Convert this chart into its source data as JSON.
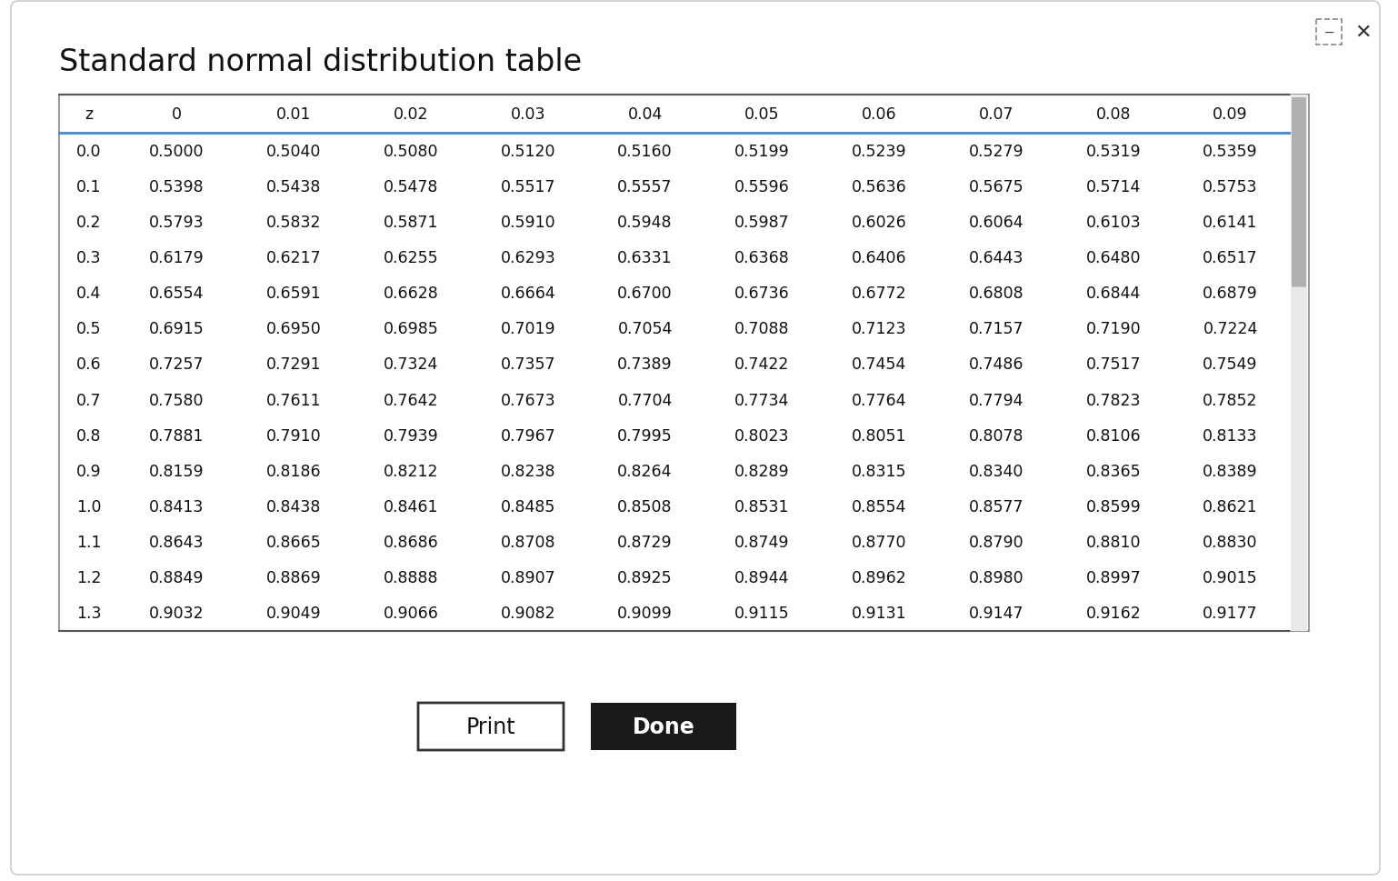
{
  "title": "Standard normal distribution table",
  "col_headers": [
    "z",
    "0",
    "0.01",
    "0.02",
    "0.03",
    "0.04",
    "0.05",
    "0.06",
    "0.07",
    "0.08",
    "0.09"
  ],
  "rows": [
    [
      "0.0",
      "0.5000",
      "0.5040",
      "0.5080",
      "0.5120",
      "0.5160",
      "0.5199",
      "0.5239",
      "0.5279",
      "0.5319",
      "0.5359"
    ],
    [
      "0.1",
      "0.5398",
      "0.5438",
      "0.5478",
      "0.5517",
      "0.5557",
      "0.5596",
      "0.5636",
      "0.5675",
      "0.5714",
      "0.5753"
    ],
    [
      "0.2",
      "0.5793",
      "0.5832",
      "0.5871",
      "0.5910",
      "0.5948",
      "0.5987",
      "0.6026",
      "0.6064",
      "0.6103",
      "0.6141"
    ],
    [
      "0.3",
      "0.6179",
      "0.6217",
      "0.6255",
      "0.6293",
      "0.6331",
      "0.6368",
      "0.6406",
      "0.6443",
      "0.6480",
      "0.6517"
    ],
    [
      "0.4",
      "0.6554",
      "0.6591",
      "0.6628",
      "0.6664",
      "0.6700",
      "0.6736",
      "0.6772",
      "0.6808",
      "0.6844",
      "0.6879"
    ],
    [
      "0.5",
      "0.6915",
      "0.6950",
      "0.6985",
      "0.7019",
      "0.7054",
      "0.7088",
      "0.7123",
      "0.7157",
      "0.7190",
      "0.7224"
    ],
    [
      "0.6",
      "0.7257",
      "0.7291",
      "0.7324",
      "0.7357",
      "0.7389",
      "0.7422",
      "0.7454",
      "0.7486",
      "0.7517",
      "0.7549"
    ],
    [
      "0.7",
      "0.7580",
      "0.7611",
      "0.7642",
      "0.7673",
      "0.7704",
      "0.7734",
      "0.7764",
      "0.7794",
      "0.7823",
      "0.7852"
    ],
    [
      "0.8",
      "0.7881",
      "0.7910",
      "0.7939",
      "0.7967",
      "0.7995",
      "0.8023",
      "0.8051",
      "0.8078",
      "0.8106",
      "0.8133"
    ],
    [
      "0.9",
      "0.8159",
      "0.8186",
      "0.8212",
      "0.8238",
      "0.8264",
      "0.8289",
      "0.8315",
      "0.8340",
      "0.8365",
      "0.8389"
    ],
    [
      "1.0",
      "0.8413",
      "0.8438",
      "0.8461",
      "0.8485",
      "0.8508",
      "0.8531",
      "0.8554",
      "0.8577",
      "0.8599",
      "0.8621"
    ],
    [
      "1.1",
      "0.8643",
      "0.8665",
      "0.8686",
      "0.8708",
      "0.8729",
      "0.8749",
      "0.8770",
      "0.8790",
      "0.8810",
      "0.8830"
    ],
    [
      "1.2",
      "0.8849",
      "0.8869",
      "0.8888",
      "0.8907",
      "0.8925",
      "0.8944",
      "0.8962",
      "0.8980",
      "0.8997",
      "0.9015"
    ],
    [
      "1.3",
      "0.9032",
      "0.9049",
      "0.9066",
      "0.9082",
      "0.9099",
      "0.9115",
      "0.9131",
      "0.9147",
      "0.9162",
      "0.9177"
    ]
  ],
  "bg_color": "#ffffff",
  "window_bg": "#ffffff",
  "window_border": "#cccccc",
  "header_line_color": "#4a90d9",
  "title_fontsize": 24,
  "header_fontsize": 12.5,
  "cell_fontsize": 12.5,
  "print_btn_text": "Print",
  "done_btn_text": "Done",
  "done_btn_bg": "#1a1a1a",
  "done_btn_text_color": "#ffffff",
  "print_btn_bg": "#ffffff",
  "print_btn_text_color": "#111111",
  "scrollbar_bg": "#e8e8e8",
  "scrollbar_thumb": "#b0b0b0",
  "top_bar_bg": "#f0f0f0"
}
